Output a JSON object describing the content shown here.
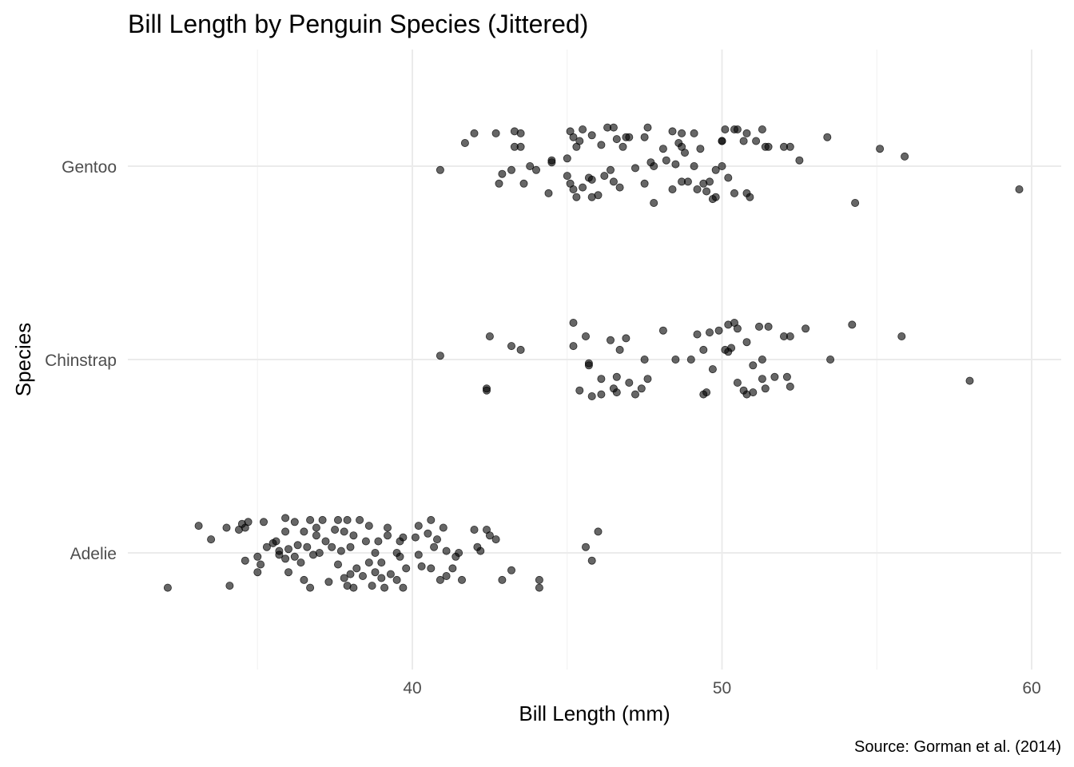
{
  "chart_data": {
    "type": "scatter",
    "title": "Bill Length by Penguin Species (Jittered)",
    "xlabel": "Bill Length (mm)",
    "ylabel": "Species",
    "caption": "Source: Gorman et al. (2014)",
    "xlim": [
      31.5,
      61
    ],
    "x_ticks": [
      40,
      50,
      60
    ],
    "x_minor_ticks": [
      35,
      45,
      55
    ],
    "categories": [
      "Adelie",
      "Chinstrap",
      "Gentoo"
    ],
    "grid": true,
    "jitter_height": 0.2,
    "point_color": "#000000",
    "point_opacity": 0.6,
    "series": [
      {
        "category": "Adelie",
        "points": [
          [
            32.1,
            -0.18
          ],
          [
            33.1,
            0.14
          ],
          [
            33.5,
            0.07
          ],
          [
            34.0,
            0.13
          ],
          [
            34.1,
            -0.17
          ],
          [
            34.4,
            0.12
          ],
          [
            34.5,
            0.15
          ],
          [
            34.6,
            0.13
          ],
          [
            34.7,
            0.16
          ],
          [
            34.6,
            -0.04
          ],
          [
            35.0,
            -0.02
          ],
          [
            35.0,
            -0.1
          ],
          [
            35.1,
            -0.06
          ],
          [
            35.2,
            0.16
          ],
          [
            35.3,
            0.03
          ],
          [
            35.5,
            0.05
          ],
          [
            35.6,
            0.06
          ],
          [
            35.7,
            0.01
          ],
          [
            35.7,
            -0.01
          ],
          [
            35.9,
            0.18
          ],
          [
            35.9,
            0.11
          ],
          [
            35.9,
            -0.03
          ],
          [
            36.0,
            0.02
          ],
          [
            36.0,
            -0.1
          ],
          [
            36.2,
            0.16
          ],
          [
            36.2,
            -0.02
          ],
          [
            36.3,
            0.04
          ],
          [
            36.4,
            -0.05
          ],
          [
            36.5,
            0.11
          ],
          [
            36.5,
            -0.14
          ],
          [
            36.6,
            0.03
          ],
          [
            36.7,
            0.17
          ],
          [
            36.7,
            -0.18
          ],
          [
            36.8,
            -0.01
          ],
          [
            36.9,
            0.13
          ],
          [
            36.9,
            0.09
          ],
          [
            37.0,
            0.0
          ],
          [
            37.1,
            0.17
          ],
          [
            37.2,
            0.06
          ],
          [
            37.3,
            -0.15
          ],
          [
            37.4,
            0.03
          ],
          [
            37.5,
            0.12
          ],
          [
            37.6,
            0.17
          ],
          [
            37.6,
            -0.06
          ],
          [
            37.7,
            0.01
          ],
          [
            37.8,
            -0.13
          ],
          [
            37.8,
            0.11
          ],
          [
            37.9,
            0.17
          ],
          [
            37.9,
            -0.17
          ],
          [
            38.0,
            0.03
          ],
          [
            38.0,
            -0.11
          ],
          [
            38.1,
            0.09
          ],
          [
            38.1,
            -0.18
          ],
          [
            38.2,
            -0.08
          ],
          [
            38.3,
            0.17
          ],
          [
            38.4,
            -0.12
          ],
          [
            38.5,
            0.06
          ],
          [
            38.6,
            -0.05
          ],
          [
            38.6,
            0.14
          ],
          [
            38.7,
            -0.17
          ],
          [
            38.8,
            -0.1
          ],
          [
            38.8,
            0.0
          ],
          [
            38.9,
            0.06
          ],
          [
            39.0,
            -0.05
          ],
          [
            39.0,
            -0.13
          ],
          [
            39.1,
            -0.18
          ],
          [
            39.2,
            0.13
          ],
          [
            39.2,
            0.09
          ],
          [
            39.3,
            -0.11
          ],
          [
            39.5,
            -0.14
          ],
          [
            39.5,
            0.0
          ],
          [
            39.6,
            -0.02
          ],
          [
            39.6,
            0.06
          ],
          [
            39.7,
            0.08
          ],
          [
            39.7,
            -0.18
          ],
          [
            39.8,
            -0.08
          ],
          [
            40.1,
            0.08
          ],
          [
            40.2,
            0.14
          ],
          [
            40.2,
            -0.01
          ],
          [
            40.3,
            -0.07
          ],
          [
            40.5,
            0.1
          ],
          [
            40.6,
            0.17
          ],
          [
            40.6,
            -0.08
          ],
          [
            40.7,
            0.03
          ],
          [
            40.8,
            0.07
          ],
          [
            40.9,
            -0.14
          ],
          [
            41.0,
            0.13
          ],
          [
            41.1,
            0.01
          ],
          [
            41.1,
            -0.12
          ],
          [
            41.3,
            -0.08
          ],
          [
            41.4,
            -0.02
          ],
          [
            41.5,
            0.0
          ],
          [
            41.6,
            -0.14
          ],
          [
            42.0,
            0.12
          ],
          [
            42.1,
            0.03
          ],
          [
            42.2,
            0.01
          ],
          [
            42.4,
            0.12
          ],
          [
            42.5,
            0.09
          ],
          [
            42.7,
            0.07
          ],
          [
            42.9,
            -0.14
          ],
          [
            43.2,
            -0.09
          ],
          [
            44.1,
            -0.14
          ],
          [
            44.1,
            -0.18
          ],
          [
            45.6,
            0.03
          ],
          [
            45.8,
            -0.04
          ],
          [
            46.0,
            0.11
          ]
        ]
      },
      {
        "category": "Chinstrap",
        "points": [
          [
            40.9,
            0.02
          ],
          [
            42.4,
            -0.15
          ],
          [
            42.4,
            -0.16
          ],
          [
            42.5,
            0.12
          ],
          [
            43.2,
            0.07
          ],
          [
            43.5,
            0.05
          ],
          [
            45.2,
            0.19
          ],
          [
            45.2,
            0.07
          ],
          [
            45.4,
            -0.16
          ],
          [
            45.6,
            0.12
          ],
          [
            45.7,
            -0.03
          ],
          [
            45.7,
            -0.02
          ],
          [
            45.8,
            -0.19
          ],
          [
            46.1,
            -0.1
          ],
          [
            46.1,
            -0.18
          ],
          [
            46.4,
            0.1
          ],
          [
            46.5,
            -0.15
          ],
          [
            46.6,
            -0.09
          ],
          [
            46.6,
            -0.17
          ],
          [
            46.7,
            0.05
          ],
          [
            46.9,
            0.11
          ],
          [
            47.0,
            -0.12
          ],
          [
            47.2,
            -0.18
          ],
          [
            47.4,
            -0.15
          ],
          [
            47.5,
            0.0
          ],
          [
            47.6,
            -0.1
          ],
          [
            48.1,
            0.15
          ],
          [
            48.5,
            0.0
          ],
          [
            49.0,
            0.0
          ],
          [
            49.2,
            0.13
          ],
          [
            49.4,
            0.05
          ],
          [
            49.6,
            0.14
          ],
          [
            49.4,
            -0.18
          ],
          [
            49.5,
            -0.17
          ],
          [
            49.7,
            -0.05
          ],
          [
            49.9,
            0.15
          ],
          [
            50.1,
            0.05
          ],
          [
            50.2,
            0.04
          ],
          [
            50.2,
            0.18
          ],
          [
            50.3,
            0.06
          ],
          [
            50.4,
            0.19
          ],
          [
            50.5,
            0.16
          ],
          [
            50.5,
            -0.12
          ],
          [
            50.7,
            -0.16
          ],
          [
            50.8,
            0.09
          ],
          [
            50.8,
            -0.18
          ],
          [
            51.0,
            -0.17
          ],
          [
            51.0,
            -0.03
          ],
          [
            51.2,
            0.17
          ],
          [
            51.3,
            0.0
          ],
          [
            51.3,
            -0.1
          ],
          [
            51.4,
            -0.15
          ],
          [
            51.5,
            0.17
          ],
          [
            51.7,
            -0.09
          ],
          [
            52.0,
            0.12
          ],
          [
            52.1,
            -0.09
          ],
          [
            52.2,
            0.12
          ],
          [
            52.2,
            -0.14
          ],
          [
            52.7,
            0.16
          ],
          [
            53.5,
            0.0
          ],
          [
            54.2,
            0.18
          ],
          [
            55.8,
            0.12
          ],
          [
            58.0,
            -0.11
          ]
        ]
      },
      {
        "category": "Gentoo",
        "points": [
          [
            40.9,
            -0.02
          ],
          [
            41.7,
            0.12
          ],
          [
            42.0,
            0.17
          ],
          [
            42.7,
            0.17
          ],
          [
            42.8,
            -0.09
          ],
          [
            42.9,
            -0.04
          ],
          [
            43.2,
            -0.02
          ],
          [
            43.3,
            0.1
          ],
          [
            43.3,
            0.18
          ],
          [
            43.5,
            0.17
          ],
          [
            43.5,
            0.1
          ],
          [
            43.6,
            -0.09
          ],
          [
            43.8,
            0.0
          ],
          [
            44.0,
            -0.02
          ],
          [
            44.4,
            -0.14
          ],
          [
            44.5,
            0.03
          ],
          [
            44.5,
            0.02
          ],
          [
            45.0,
            0.04
          ],
          [
            45.0,
            -0.05
          ],
          [
            45.1,
            -0.09
          ],
          [
            45.1,
            0.18
          ],
          [
            45.2,
            0.15
          ],
          [
            45.2,
            -0.12
          ],
          [
            45.3,
            -0.16
          ],
          [
            45.3,
            0.1
          ],
          [
            45.4,
            0.13
          ],
          [
            45.5,
            0.19
          ],
          [
            45.5,
            -0.11
          ],
          [
            45.7,
            -0.06
          ],
          [
            45.8,
            0.16
          ],
          [
            45.8,
            -0.07
          ],
          [
            45.8,
            -0.16
          ],
          [
            46.0,
            -0.15
          ],
          [
            46.1,
            0.11
          ],
          [
            46.2,
            -0.05
          ],
          [
            46.3,
            0.2
          ],
          [
            46.4,
            -0.02
          ],
          [
            46.5,
            0.2
          ],
          [
            46.5,
            -0.08
          ],
          [
            46.6,
            0.14
          ],
          [
            46.7,
            -0.11
          ],
          [
            46.8,
            0.1
          ],
          [
            46.9,
            0.15
          ],
          [
            47.0,
            0.15
          ],
          [
            47.2,
            -0.01
          ],
          [
            47.5,
            0.15
          ],
          [
            47.5,
            -0.09
          ],
          [
            47.6,
            0.2
          ],
          [
            47.7,
            0.02
          ],
          [
            47.8,
            -0.19
          ],
          [
            47.8,
            0.0
          ],
          [
            48.1,
            0.09
          ],
          [
            48.2,
            0.03
          ],
          [
            48.4,
            0.18
          ],
          [
            48.4,
            -0.12
          ],
          [
            48.5,
            0.01
          ],
          [
            48.6,
            0.12
          ],
          [
            48.7,
            0.1
          ],
          [
            48.7,
            0.17
          ],
          [
            48.7,
            -0.08
          ],
          [
            48.8,
            0.07
          ],
          [
            48.9,
            -0.08
          ],
          [
            49.1,
            0.0
          ],
          [
            49.1,
            0.17
          ],
          [
            49.2,
            -0.12
          ],
          [
            49.3,
            0.09
          ],
          [
            49.4,
            -0.09
          ],
          [
            49.5,
            -0.13
          ],
          [
            49.6,
            -0.08
          ],
          [
            49.7,
            -0.17
          ],
          [
            49.8,
            -0.02
          ],
          [
            49.8,
            -0.16
          ],
          [
            50.0,
            0.13
          ],
          [
            50.0,
            0.13
          ],
          [
            50.0,
            0.0
          ],
          [
            50.1,
            0.19
          ],
          [
            50.2,
            -0.06
          ],
          [
            50.4,
            0.19
          ],
          [
            50.4,
            -0.14
          ],
          [
            50.5,
            0.19
          ],
          [
            50.7,
            0.13
          ],
          [
            50.8,
            0.17
          ],
          [
            50.8,
            -0.14
          ],
          [
            50.9,
            -0.16
          ],
          [
            51.1,
            0.13
          ],
          [
            51.3,
            0.19
          ],
          [
            51.4,
            0.1
          ],
          [
            51.5,
            0.1
          ],
          [
            52.0,
            0.1
          ],
          [
            52.2,
            0.1
          ],
          [
            52.5,
            0.03
          ],
          [
            53.4,
            0.15
          ],
          [
            54.3,
            -0.19
          ],
          [
            55.1,
            0.09
          ],
          [
            55.9,
            0.05
          ],
          [
            59.6,
            -0.12
          ]
        ]
      }
    ]
  }
}
